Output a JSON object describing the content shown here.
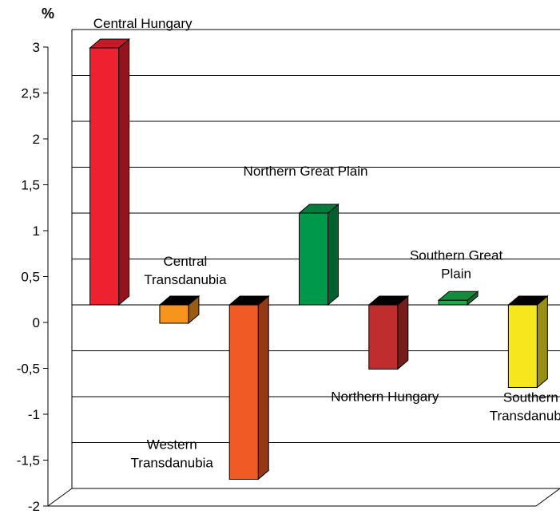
{
  "chart_data": {
    "type": "bar",
    "unit_label": "%",
    "categories": [
      "Central Hungary",
      "Central Transdanubia",
      "Western Transdanubia",
      "Northern Great Plain",
      "Northern Hungary",
      "Southern Great Plain",
      "Southern Transdanubia"
    ],
    "values": [
      2.8,
      -0.2,
      -1.9,
      1.0,
      -0.7,
      0.05,
      -0.9
    ],
    "colors": [
      "#ee2130",
      "#f7941d",
      "#f05a24",
      "#00994c",
      "#bf2d2f",
      "#1aab4a",
      "#f5e61e"
    ],
    "ylim": [
      -2,
      3
    ],
    "yticks": [
      "3",
      "2,5",
      "2",
      "1,5",
      "1",
      "0,5",
      "0",
      "-0,5",
      "-1",
      "-1,5",
      "-2"
    ],
    "grid": true
  }
}
